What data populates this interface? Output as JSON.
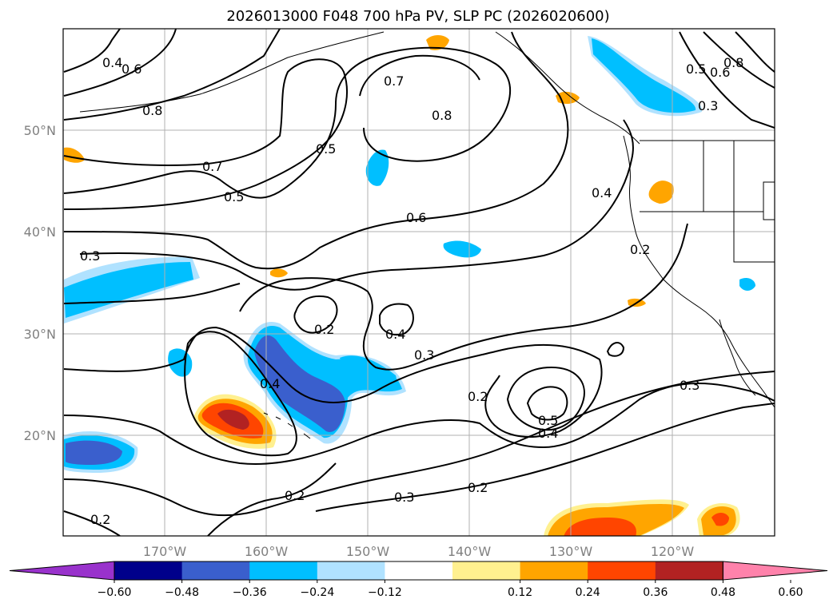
{
  "title": "2026013000 F048 700 hPa PV, SLP PC (2026020600)",
  "lat_labels": [
    "50°N",
    "40°N",
    "30°N",
    "20°N"
  ],
  "lon_labels": [
    "170°W",
    "160°W",
    "150°W",
    "140°W",
    "130°W",
    "120°W"
  ],
  "colorbar": {
    "tick_labels": [
      "−0.60",
      "−0.48",
      "−0.36",
      "−0.24",
      "−0.12",
      "0.12",
      "0.24",
      "0.36",
      "0.48",
      "0.60"
    ],
    "colors": [
      "#9932cc",
      "#00008b",
      "#3a5fcd",
      "#00bfff",
      "#b0e2ff",
      "#ffffff",
      "#fff08f",
      "#ffa500",
      "#ff4500",
      "#b22222",
      "#ff82ab"
    ]
  },
  "contour_labels": [
    "0.4",
    "0.6",
    "0.8",
    "0.7",
    "0.5",
    "0.5",
    "0.6",
    "0.7",
    "0.8",
    "0.5",
    "0.6",
    "0.8",
    "0.3",
    "0.3",
    "0.2",
    "0.4",
    "0.3",
    "0.2",
    "0.4",
    "0.5",
    "0.4",
    "0.3",
    "0.2",
    "0.3",
    "0.2",
    "0.2",
    "0.2",
    "0.4"
  ],
  "colors": {
    "coast": "#000000",
    "grid": "#b0b0b0",
    "contour": "#000000"
  }
}
